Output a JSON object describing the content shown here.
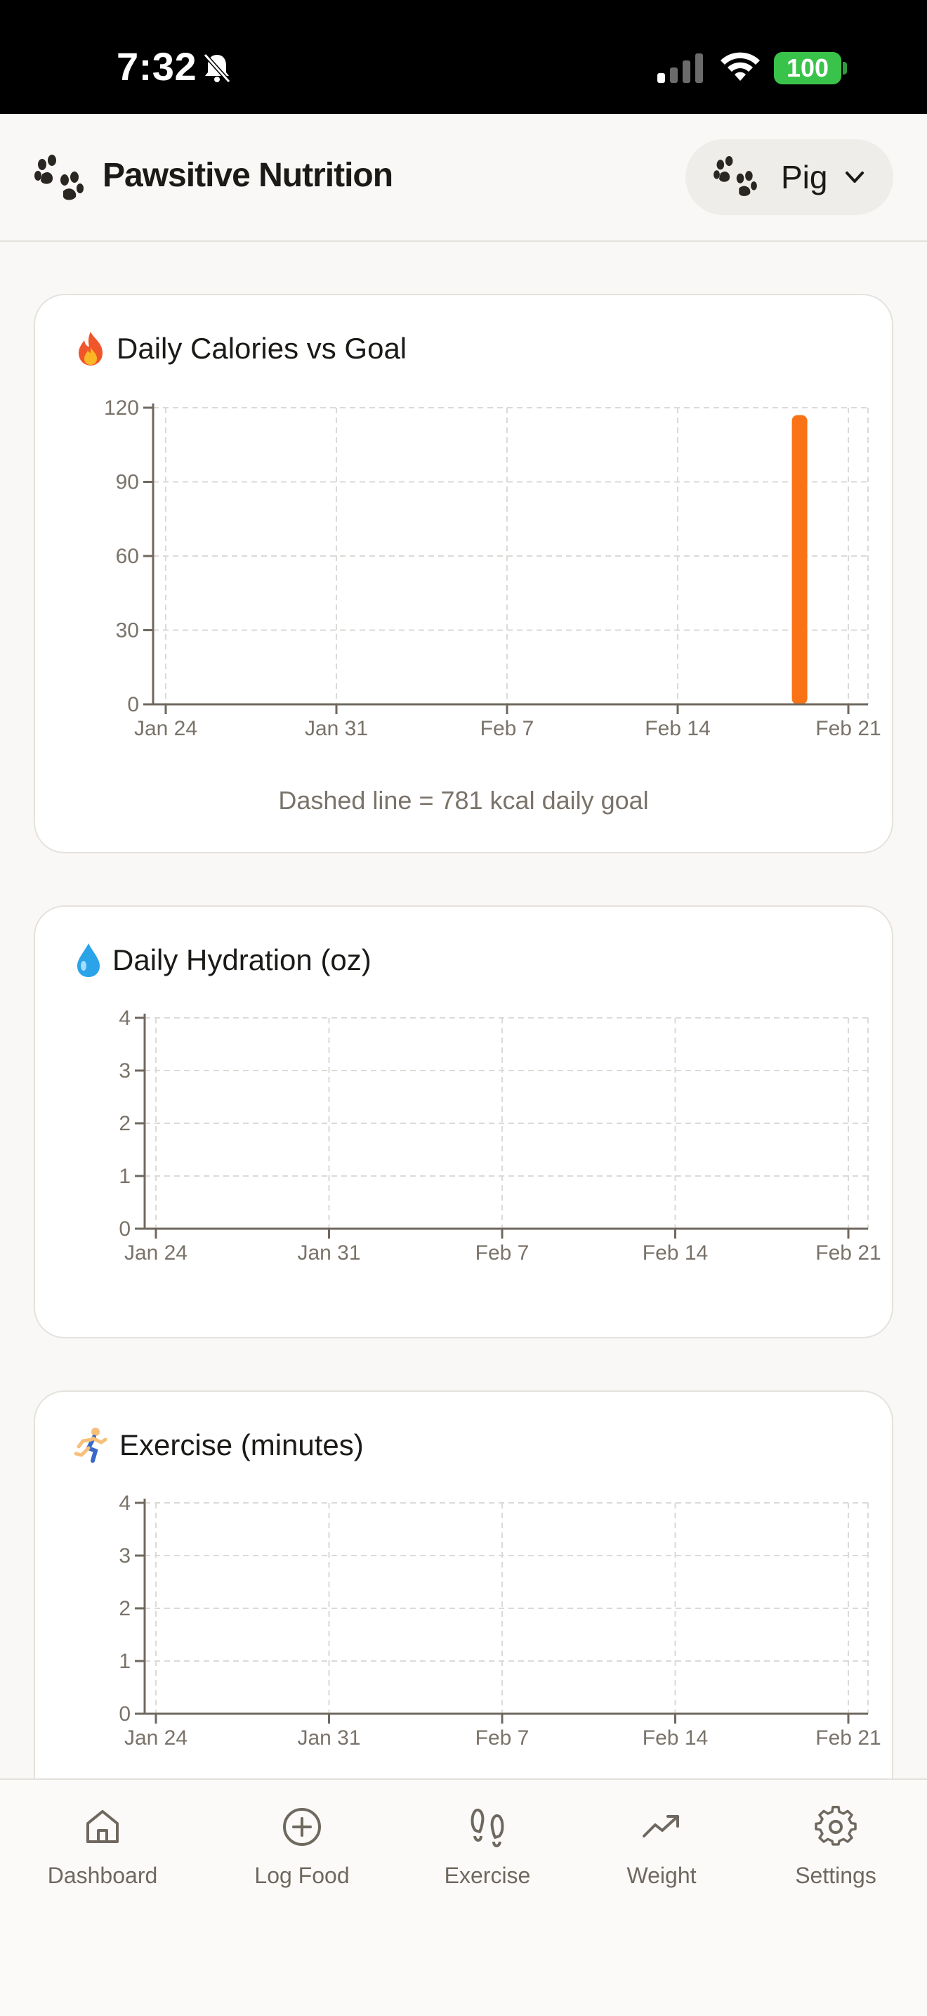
{
  "status_bar": {
    "time": "7:32",
    "battery": "100"
  },
  "header": {
    "title": "Pawsitive Nutrition",
    "pet_selector": {
      "selected": "Pig"
    }
  },
  "cards": [
    {
      "title": "Daily Calories vs Goal",
      "icon": "fire-emoji",
      "note": "Dashed line = 781 kcal daily goal"
    },
    {
      "title": "Daily Hydration (oz)",
      "icon": "droplet-emoji"
    },
    {
      "title": "Exercise (minutes)",
      "icon": "runner-emoji"
    }
  ],
  "chart_data": [
    {
      "type": "bar",
      "title": "Daily Calories vs Goal",
      "x_tick_labels": [
        "Jan 24",
        "Jan 31",
        "Feb 7",
        "Feb 14",
        "Feb 21"
      ],
      "y_ticks": [
        0,
        30,
        60,
        90,
        120
      ],
      "ylim": [
        0,
        120
      ],
      "xlim": [
        "Jan 24",
        "Feb 21"
      ],
      "grid": true,
      "bars": [
        {
          "x": "Feb 19",
          "value": 117
        }
      ],
      "bar_color": "#f97316",
      "annotation": "Dashed line = 781 kcal daily goal"
    },
    {
      "type": "bar",
      "title": "Daily Hydration (oz)",
      "x_tick_labels": [
        "Jan 24",
        "Jan 31",
        "Feb 7",
        "Feb 14",
        "Feb 21"
      ],
      "y_ticks": [
        0,
        1,
        2,
        3,
        4
      ],
      "ylim": [
        0,
        4
      ],
      "grid": true,
      "bars": []
    },
    {
      "type": "bar",
      "title": "Exercise (minutes)",
      "x_tick_labels": [
        "Jan 24",
        "Jan 31",
        "Feb 7",
        "Feb 14",
        "Feb 21"
      ],
      "y_ticks": [
        0,
        1,
        2,
        3,
        4
      ],
      "ylim": [
        0,
        4
      ],
      "grid": true,
      "bars": []
    }
  ],
  "bottom_nav": [
    {
      "label": "Dashboard",
      "icon": "home-icon"
    },
    {
      "label": "Log Food",
      "icon": "plus-circle-icon"
    },
    {
      "label": "Exercise",
      "icon": "footprints-icon"
    },
    {
      "label": "Weight",
      "icon": "trending-up-icon"
    },
    {
      "label": "Settings",
      "icon": "gear-icon"
    }
  ],
  "colors": {
    "accent": "#f97316",
    "background": "#f9f8f6",
    "card": "#ffffff",
    "muted_text": "#7a736a"
  }
}
